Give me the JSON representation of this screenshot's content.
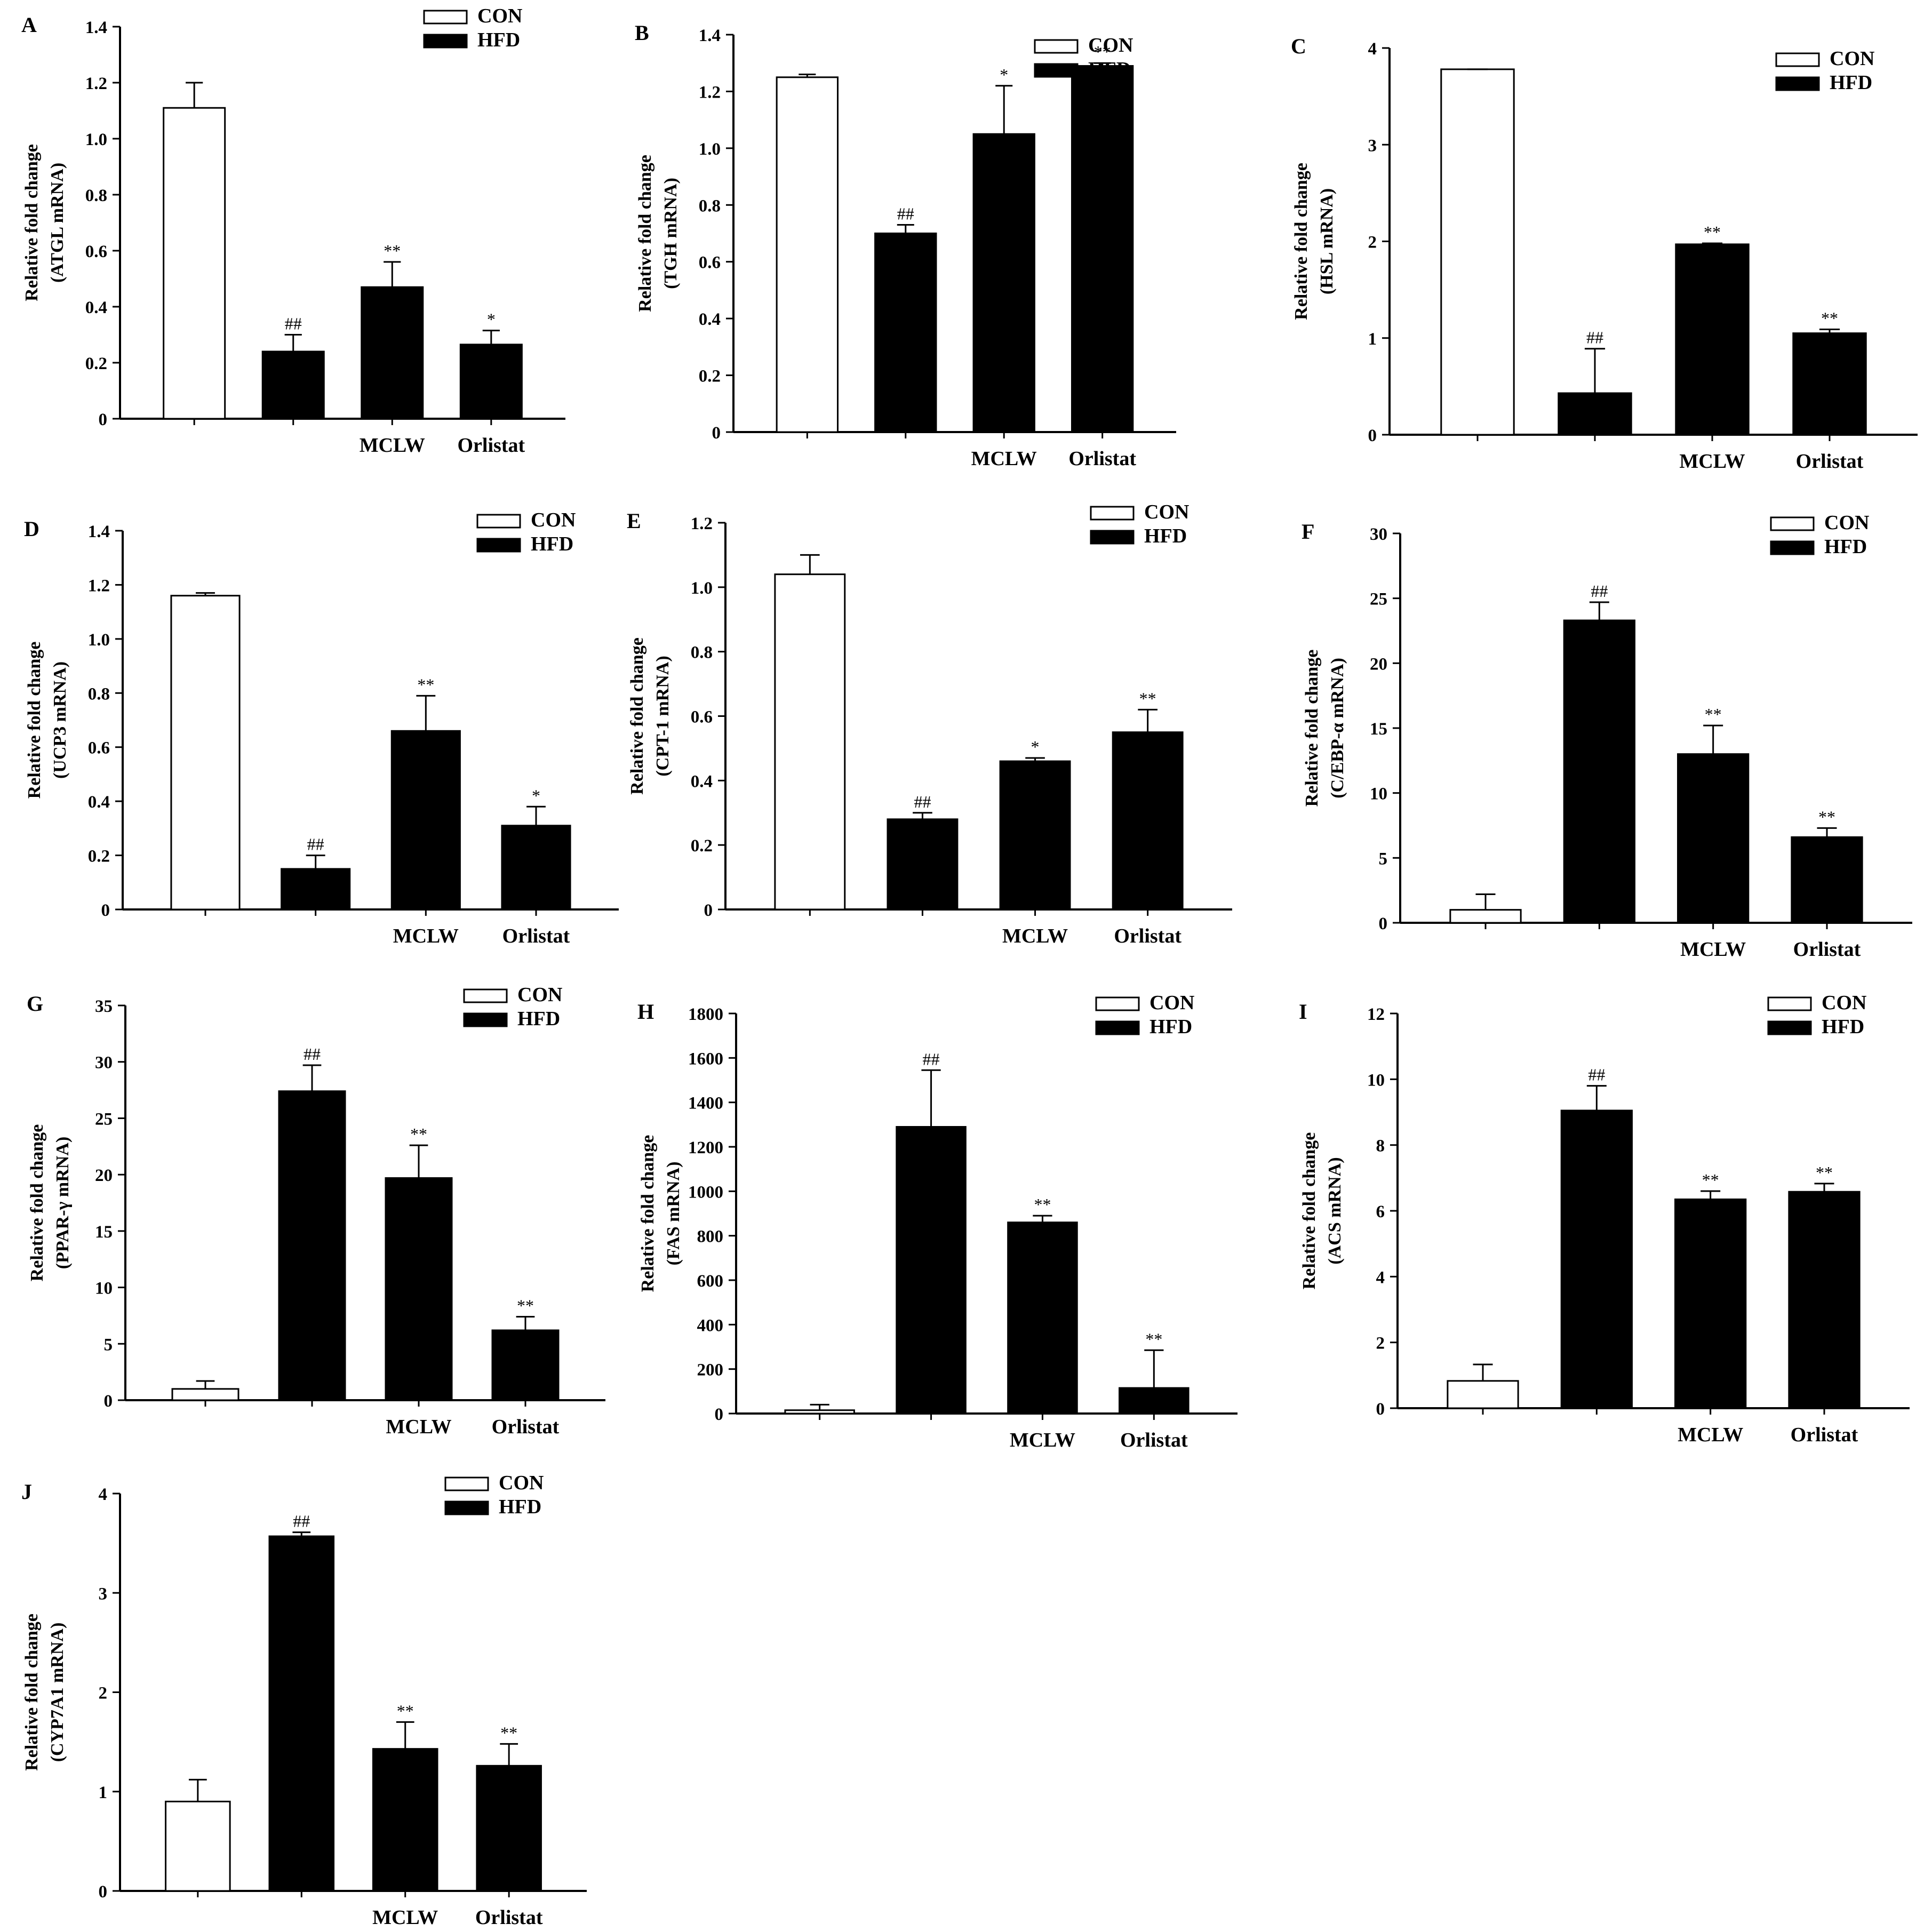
{
  "colors": {
    "con_fill": "#ffffff",
    "hfd_fill": "#000000",
    "stroke": "#000000"
  },
  "chart_data": [
    {
      "panel": "A",
      "type": "bar",
      "categories": [
        "",
        "",
        "MCLW",
        "Orlistat"
      ],
      "values": [
        1.11,
        0.24,
        0.47,
        0.265
      ],
      "errors": [
        0.09,
        0.06,
        0.09,
        0.05
      ],
      "annotations": [
        "",
        "##",
        "**",
        "*"
      ],
      "ylabel": [
        "Relative fold change",
        "(ATGL mRNA)"
      ],
      "ylim": [
        0,
        1.4
      ],
      "yticks": [
        0,
        0.2,
        0.4,
        0.6,
        0.8,
        1.0,
        1.2,
        1.4
      ],
      "ytick_labels": [
        "0",
        "0.2",
        "0.4",
        "0.6",
        "0.8",
        "1.0",
        "1.2",
        "1.4"
      ],
      "legend": [
        "CON",
        "HFD"
      ],
      "legend_position": "top-right"
    },
    {
      "panel": "B",
      "type": "bar",
      "categories": [
        "",
        "",
        "MCLW",
        "Orlistat"
      ],
      "values": [
        1.25,
        0.7,
        1.05,
        1.29
      ],
      "errors": [
        0.01,
        0.03,
        0.17,
        0.01
      ],
      "annotations": [
        "",
        "##",
        "*",
        "**"
      ],
      "ylabel": [
        "Relative fold change",
        "(TGH mRNA)"
      ],
      "ylim": [
        0,
        1.4
      ],
      "yticks": [
        0,
        0.2,
        0.4,
        0.6,
        0.8,
        1.0,
        1.2,
        1.4
      ],
      "ytick_labels": [
        "0",
        "0.2",
        "0.4",
        "0.6",
        "0.8",
        "1.0",
        "1.2",
        "1.4"
      ],
      "legend": [
        "CON",
        "HFD"
      ],
      "legend_position": "top-right"
    },
    {
      "panel": "C",
      "type": "bar",
      "categories": [
        "",
        "",
        "MCLW",
        "Orlistat"
      ],
      "values": [
        3.78,
        0.43,
        1.97,
        1.05
      ],
      "errors": [
        0.0,
        0.46,
        0.01,
        0.04
      ],
      "annotations": [
        "",
        "##",
        "**",
        "**"
      ],
      "ylabel": [
        "Relative fold change",
        "(HSL mRNA)"
      ],
      "ylim": [
        0,
        4
      ],
      "yticks": [
        0,
        1,
        2,
        3,
        4
      ],
      "ytick_labels": [
        "0",
        "1",
        "2",
        "3",
        "4"
      ],
      "legend": [
        "CON",
        "HFD"
      ],
      "legend_position": "top-right"
    },
    {
      "panel": "D",
      "type": "bar",
      "categories": [
        "",
        "",
        "MCLW",
        "Orlistat"
      ],
      "values": [
        1.16,
        0.15,
        0.66,
        0.31
      ],
      "errors": [
        0.01,
        0.05,
        0.13,
        0.07
      ],
      "annotations": [
        "",
        "##",
        "**",
        "*"
      ],
      "ylabel": [
        "Relative fold change",
        "(UCP3 mRNA)"
      ],
      "ylim": [
        0,
        1.4
      ],
      "yticks": [
        0,
        0.2,
        0.4,
        0.6,
        0.8,
        1.0,
        1.2,
        1.4
      ],
      "ytick_labels": [
        "0",
        "0.2",
        "0.4",
        "0.6",
        "0.8",
        "1.0",
        "1.2",
        "1.4"
      ],
      "legend": [
        "CON",
        "HFD"
      ],
      "legend_position": "top-right"
    },
    {
      "panel": "E",
      "type": "bar",
      "categories": [
        "",
        "",
        "MCLW",
        "Orlistat"
      ],
      "values": [
        1.04,
        0.28,
        0.46,
        0.55
      ],
      "errors": [
        0.06,
        0.02,
        0.01,
        0.07
      ],
      "annotations": [
        "",
        "##",
        "*",
        "**"
      ],
      "ylabel": [
        "Relative fold change",
        "(CPT-1 mRNA)"
      ],
      "ylim": [
        0,
        1.2
      ],
      "yticks": [
        0,
        0.2,
        0.4,
        0.6,
        0.8,
        1.0,
        1.2
      ],
      "ytick_labels": [
        "0",
        "0.2",
        "0.4",
        "0.6",
        "0.8",
        "1.0",
        "1.2"
      ],
      "legend": [
        "CON",
        "HFD"
      ],
      "legend_position": "top-right"
    },
    {
      "panel": "F",
      "type": "bar",
      "categories": [
        "",
        "",
        "MCLW",
        "Orlistat"
      ],
      "values": [
        1.0,
        23.3,
        13.0,
        6.6
      ],
      "errors": [
        1.2,
        1.4,
        2.2,
        0.7
      ],
      "annotations": [
        "",
        "##",
        "**",
        "**"
      ],
      "ylabel": [
        "Relative fold change",
        "(C/EBP-α mRNA)"
      ],
      "ylim": [
        0,
        30
      ],
      "yticks": [
        0,
        5,
        10,
        15,
        20,
        25,
        30
      ],
      "ytick_labels": [
        "0",
        "5",
        "10",
        "15",
        "20",
        "25",
        "30"
      ],
      "legend": [
        "CON",
        "HFD"
      ],
      "legend_position": "top-right"
    },
    {
      "panel": "G",
      "type": "bar",
      "categories": [
        "",
        "",
        "MCLW",
        "Orlistat"
      ],
      "values": [
        1.0,
        27.4,
        19.7,
        6.2
      ],
      "errors": [
        0.7,
        2.3,
        2.9,
        1.2
      ],
      "annotations": [
        "",
        "##",
        "**",
        "**"
      ],
      "ylabel": [
        "Relative fold change",
        "(PPAR-γ mRNA)"
      ],
      "ylim": [
        0,
        35
      ],
      "yticks": [
        0,
        5,
        10,
        15,
        20,
        25,
        30,
        35
      ],
      "ytick_labels": [
        "0",
        "5",
        "10",
        "15",
        "20",
        "25",
        "30",
        "35"
      ],
      "legend": [
        "CON",
        "HFD"
      ],
      "legend_position": "top-right"
    },
    {
      "panel": "H",
      "type": "bar",
      "categories": [
        "",
        "",
        "MCLW",
        "Orlistat"
      ],
      "values": [
        15,
        1290,
        860,
        115
      ],
      "errors": [
        25,
        255,
        30,
        170
      ],
      "annotations": [
        "",
        "##",
        "**",
        "**"
      ],
      "ylabel": [
        "Relative fold change",
        "(FAS mRNA)"
      ],
      "ylim": [
        0,
        1800
      ],
      "yticks": [
        0,
        200,
        400,
        600,
        800,
        1000,
        1200,
        1400,
        1600,
        1800
      ],
      "ytick_labels": [
        "0",
        "200",
        "400",
        "600",
        "800",
        "1000",
        "1200",
        "1400",
        "1600",
        "1800"
      ],
      "legend": [
        "CON",
        "HFD"
      ],
      "legend_position": "top-right"
    },
    {
      "panel": "I",
      "type": "bar",
      "categories": [
        "",
        "",
        "MCLW",
        "Orlistat"
      ],
      "values": [
        0.83,
        9.05,
        6.35,
        6.58
      ],
      "errors": [
        0.5,
        0.75,
        0.25,
        0.25
      ],
      "annotations": [
        "",
        "##",
        "**",
        "**"
      ],
      "ylabel": [
        "Relative fold change",
        "(ACS mRNA)"
      ],
      "ylim": [
        0,
        12
      ],
      "yticks": [
        0,
        2,
        4,
        6,
        8,
        10,
        12
      ],
      "ytick_labels": [
        "0",
        "2",
        "4",
        "6",
        "8",
        "10",
        "12"
      ],
      "legend": [
        "CON",
        "HFD"
      ],
      "legend_position": "top-right"
    },
    {
      "panel": "J",
      "type": "bar",
      "categories": [
        "",
        "",
        "MCLW",
        "Orlistat"
      ],
      "values": [
        0.9,
        3.57,
        1.43,
        1.26
      ],
      "errors": [
        0.22,
        0.04,
        0.27,
        0.22
      ],
      "annotations": [
        "",
        "##",
        "**",
        "**"
      ],
      "ylabel": [
        "Relative fold change",
        "(CYP7A1 mRNA)"
      ],
      "ylim": [
        0,
        4
      ],
      "yticks": [
        0,
        1,
        2,
        3,
        4
      ],
      "ytick_labels": [
        "0",
        "1",
        "2",
        "3",
        "4"
      ],
      "legend": [
        "CON",
        "HFD"
      ],
      "legend_position": "top-right"
    }
  ]
}
